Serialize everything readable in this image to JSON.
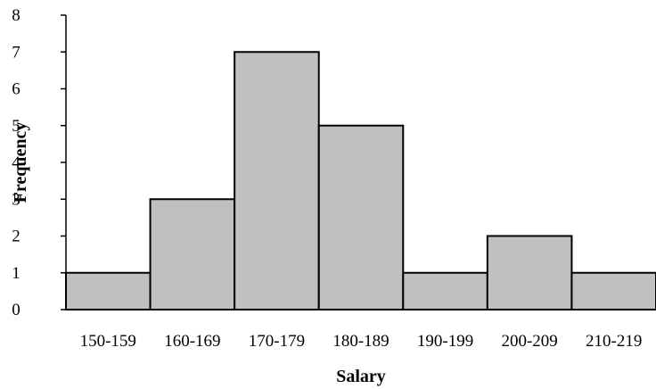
{
  "chart_data": {
    "type": "bar",
    "categories": [
      "150-159",
      "160-169",
      "170-179",
      "180-189",
      "190-199",
      "200-209",
      "210-219"
    ],
    "values": [
      1,
      3,
      7,
      5,
      1,
      2,
      1
    ],
    "xlabel": "Salary",
    "ylabel": "Frequency",
    "ylim": [
      0,
      8
    ],
    "yticks": [
      "0",
      "1",
      "2",
      "3",
      "4",
      "5",
      "6",
      "7",
      "8"
    ],
    "bar_color": "#c0c0c0",
    "bar_edge_color": "#000000",
    "grid": false,
    "legend": "none"
  }
}
